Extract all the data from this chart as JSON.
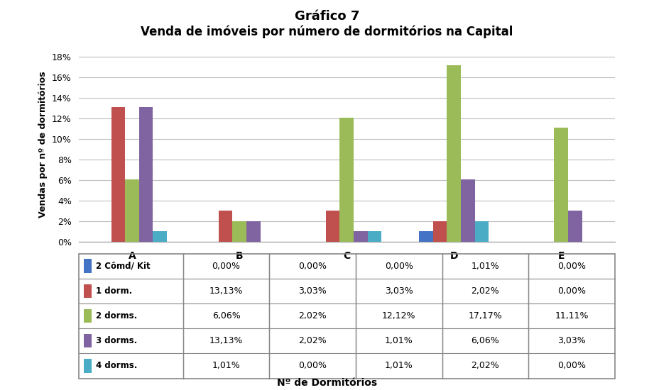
{
  "title_line1": "Gráfico 7",
  "title_line2": "Venda de imóveis por número de dormitórios na Capital",
  "categories": [
    "A",
    "B",
    "C",
    "D",
    "E"
  ],
  "series": [
    {
      "label": "2 Cômd/ Kit",
      "color": "#4472C4",
      "values": [
        0.0,
        0.0,
        0.0,
        0.0101,
        0.0
      ]
    },
    {
      "label": "1 dorm.",
      "color": "#C0504D",
      "values": [
        0.1313,
        0.0303,
        0.0303,
        0.0202,
        0.0
      ]
    },
    {
      "label": "2 dorms.",
      "color": "#9BBB59",
      "values": [
        0.0606,
        0.0202,
        0.1212,
        0.1717,
        0.1111
      ]
    },
    {
      "label": "3 dorms.",
      "color": "#8064A2",
      "values": [
        0.1313,
        0.0202,
        0.0101,
        0.0606,
        0.0303
      ]
    },
    {
      "label": "4 dorms.",
      "color": "#4BACC6",
      "values": [
        0.0101,
        0.0,
        0.0101,
        0.0202,
        0.0
      ]
    }
  ],
  "table_values": [
    [
      "0,00%",
      "0,00%",
      "0,00%",
      "1,01%",
      "0,00%"
    ],
    [
      "13,13%",
      "3,03%",
      "3,03%",
      "2,02%",
      "0,00%"
    ],
    [
      "6,06%",
      "2,02%",
      "12,12%",
      "17,17%",
      "11,11%"
    ],
    [
      "13,13%",
      "2,02%",
      "1,01%",
      "6,06%",
      "3,03%"
    ],
    [
      "1,01%",
      "0,00%",
      "1,01%",
      "2,02%",
      "0,00%"
    ]
  ],
  "ylabel": "Vendas por nº de dormitórios",
  "xlabel": "Nº de Dormitórios",
  "ylim": [
    0,
    0.19
  ],
  "yticks": [
    0.0,
    0.02,
    0.04,
    0.06,
    0.08,
    0.1,
    0.12,
    0.14,
    0.16,
    0.18
  ],
  "ytick_labels": [
    "0%",
    "2%",
    "4%",
    "6%",
    "8%",
    "10%",
    "12%",
    "14%",
    "16%",
    "18%"
  ],
  "background_color": "#FFFFFF",
  "plot_bg_color": "#FFFFFF",
  "grid_color": "#BEBEBE",
  "bar_width": 0.13,
  "fig_width": 9.21,
  "fig_height": 5.5,
  "dpi": 100
}
